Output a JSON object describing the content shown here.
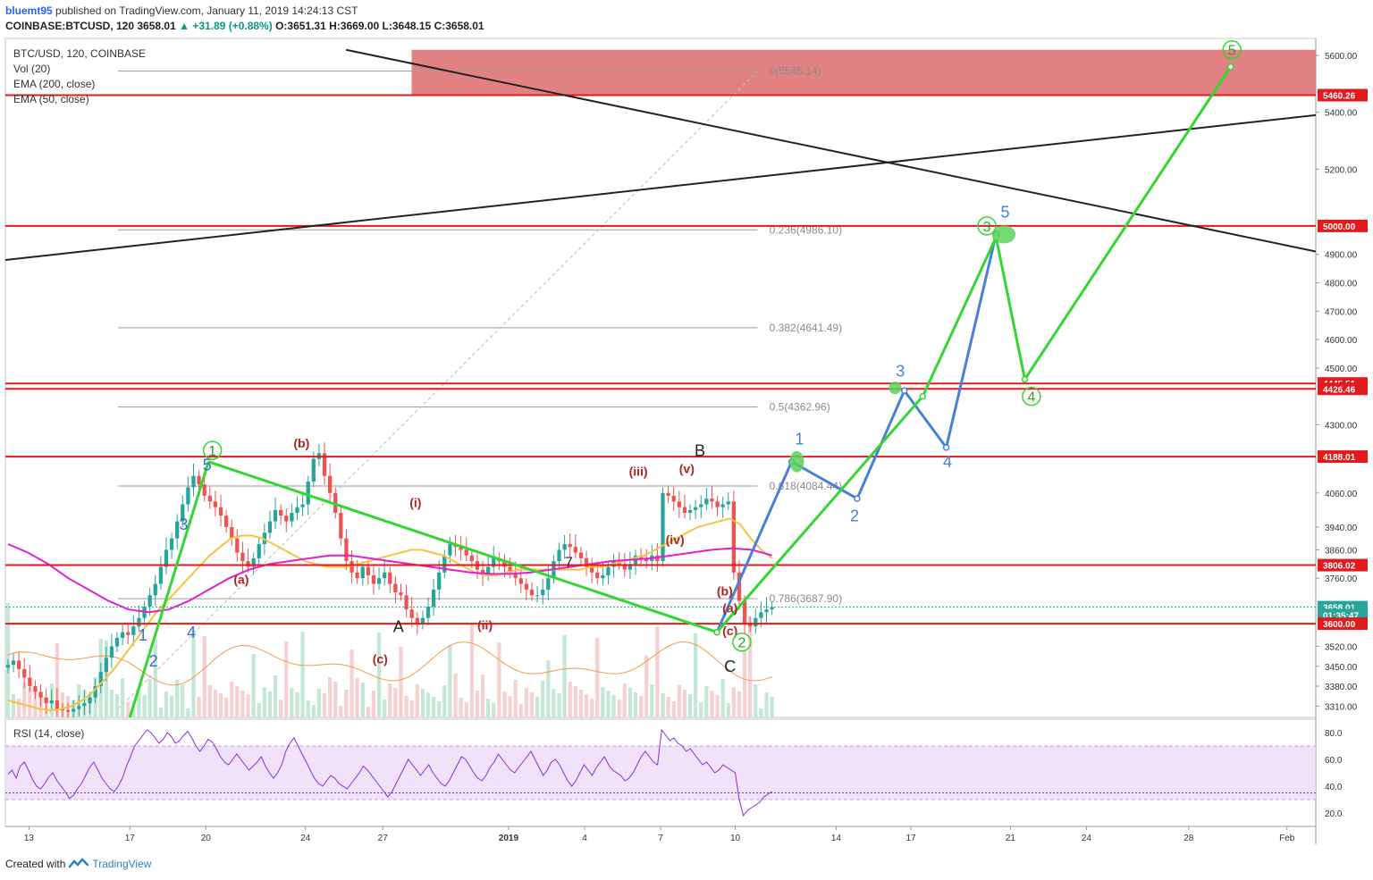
{
  "header": {
    "user": "bluemt95",
    "published_text": "published on TradingView.com, January 11, 2019 14:24:13 CST",
    "symbol": "COINBASE:BTCUSD, 120",
    "last": "3658.01",
    "change": "▲ +31.89 (+0.88%)",
    "open": "O:3651.31",
    "high": "H:3669.00",
    "low": "L:3648.15",
    "close": "C:3658.01"
  },
  "legend": {
    "title": "BTC/USD, 120, COINBASE",
    "items": [
      "Vol (20)",
      "EMA (200, close)",
      "EMA (50, close)"
    ]
  },
  "rsi": {
    "label": "RSI (14, close)",
    "ticks": [
      "80.0",
      "60.0",
      "40.0",
      "20.0"
    ],
    "values": [
      49,
      52,
      46,
      55,
      58,
      52,
      45,
      40,
      38,
      42,
      47,
      50,
      44,
      40,
      36,
      31,
      33,
      38,
      42,
      48,
      54,
      58,
      52,
      46,
      42,
      38,
      36,
      40,
      46,
      55,
      62,
      70,
      74,
      78,
      82,
      80,
      76,
      72,
      75,
      80,
      77,
      72,
      74,
      78,
      81,
      76,
      70,
      66,
      70,
      75,
      73,
      68,
      62,
      58,
      56,
      60,
      64,
      60,
      56,
      52,
      55,
      58,
      62,
      55,
      50,
      46,
      50,
      56,
      66,
      72,
      76,
      70,
      64,
      58,
      52,
      46,
      42,
      40,
      44,
      48,
      46,
      42,
      40,
      38,
      42,
      46,
      50,
      55,
      52,
      48,
      44,
      40,
      36,
      32,
      36,
      42,
      48,
      54,
      60,
      56,
      52,
      48,
      52,
      56,
      50,
      46,
      42,
      40,
      44,
      50,
      56,
      62,
      60,
      55,
      50,
      46,
      44,
      48,
      54,
      58,
      64,
      60,
      56,
      52,
      50,
      54,
      58,
      62,
      66,
      60,
      54,
      48,
      52,
      58,
      60,
      56,
      50,
      44,
      40,
      44,
      50,
      56,
      52,
      48,
      54,
      58,
      62,
      56,
      52,
      50,
      48,
      44,
      46,
      50,
      56,
      62,
      66,
      62,
      58,
      56,
      82,
      78,
      74,
      76,
      72,
      70,
      66,
      68,
      64,
      60,
      56,
      58,
      54,
      50,
      52,
      56,
      54,
      52,
      50,
      30,
      18,
      22,
      24,
      26,
      28,
      32,
      34,
      36
    ]
  },
  "footer": {
    "created_with": "Created with",
    "brand": "TradingView"
  },
  "chart_data": {
    "type": "candlestick",
    "symbol": "BTC/USD",
    "exchange": "COINBASE",
    "interval": "120",
    "ylim": [
      3270,
      5660
    ],
    "price_ticks": [
      5600,
      5400,
      5200,
      4900,
      4800,
      4700,
      4600,
      4500,
      4300,
      4060,
      3940,
      3860,
      3760,
      3520,
      3450,
      3380,
      3310
    ],
    "x_ticks": [
      "13",
      "17",
      "20",
      "24",
      "27",
      "2019",
      "4",
      "7",
      "10",
      "14",
      "17",
      "21",
      "24",
      "28",
      "Feb"
    ],
    "price_labels": [
      {
        "label": "5460.26",
        "value": 5460.26,
        "color": "#e31a1c"
      },
      {
        "label": "5000.00",
        "value": 5000.0,
        "color": "#e31a1c"
      },
      {
        "label": "4445.51",
        "value": 4445.51,
        "color": "#e31a1c"
      },
      {
        "label": "4426.46",
        "value": 4426.46,
        "color": "#e31a1c"
      },
      {
        "label": "4188.01",
        "value": 4188.01,
        "color": "#e31a1c"
      },
      {
        "label": "3806.02",
        "value": 3806.02,
        "color": "#e31a1c"
      },
      {
        "label": "3658.01",
        "value": 3658.01,
        "color": "#26a69a"
      },
      {
        "label": "01:35:47",
        "value": 3630,
        "color": "#26a69a"
      },
      {
        "label": "3600.00",
        "value": 3600.0,
        "color": "#e31a1c"
      }
    ],
    "fibonacci": [
      {
        "label": "0(5545.14)",
        "value": 5545.14
      },
      {
        "label": "0.236(4986.10)",
        "value": 4986.1
      },
      {
        "label": "0.382(4641.49)",
        "value": 4641.49
      },
      {
        "label": "0.5(4362.96)",
        "value": 4362.96
      },
      {
        "label": "0.618(4084.44)",
        "value": 4084.44
      },
      {
        "label": "0.786(3687.90)",
        "value": 3687.9
      }
    ],
    "close_series": [
      3455,
      3470,
      3440,
      3410,
      3380,
      3360,
      3340,
      3320,
      3330,
      3300,
      3295,
      3290,
      3300,
      3310,
      3320,
      3340,
      3380,
      3430,
      3480,
      3520,
      3550,
      3570,
      3560,
      3590,
      3620,
      3660,
      3700,
      3740,
      3800,
      3860,
      3900,
      3960,
      4020,
      4080,
      4120,
      4090,
      4050,
      4030,
      4010,
      3980,
      3940,
      3900,
      3850,
      3820,
      3800,
      3830,
      3880,
      3920,
      3960,
      4000,
      3980,
      3960,
      3990,
      4010,
      4020,
      4100,
      4180,
      4200,
      4120,
      4060,
      3990,
      3900,
      3820,
      3780,
      3760,
      3800,
      3770,
      3740,
      3760,
      3780,
      3740,
      3710,
      3700,
      3650,
      3620,
      3600,
      3620,
      3660,
      3720,
      3780,
      3840,
      3880,
      3870,
      3860,
      3840,
      3820,
      3790,
      3770,
      3800,
      3830,
      3820,
      3800,
      3780,
      3760,
      3740,
      3720,
      3700,
      3700,
      3720,
      3760,
      3820,
      3860,
      3880,
      3870,
      3850,
      3830,
      3800,
      3780,
      3760,
      3770,
      3800,
      3820,
      3810,
      3790,
      3810,
      3840,
      3830,
      3820,
      3840,
      3820,
      4060,
      4050,
      4030,
      4010,
      3990,
      4000,
      4010,
      4020,
      4040,
      4030,
      4010,
      4020,
      4030,
      3780,
      3680,
      3600,
      3590,
      3620,
      3640,
      3650,
      3658
    ],
    "ema50": [
      3330,
      3320,
      3310,
      3300,
      3295,
      3300,
      3310,
      3330,
      3360,
      3400,
      3440,
      3490,
      3540,
      3590,
      3640,
      3680,
      3720,
      3760,
      3800,
      3840,
      3870,
      3900,
      3910,
      3910,
      3900,
      3880,
      3860,
      3840,
      3820,
      3810,
      3800,
      3800,
      3800,
      3810,
      3820,
      3830,
      3840,
      3850,
      3860,
      3860,
      3850,
      3840,
      3820,
      3800,
      3780,
      3770,
      3770,
      3780,
      3790,
      3790,
      3790,
      3790,
      3790,
      3790,
      3790,
      3800,
      3800,
      3810,
      3820,
      3830,
      3840,
      3860,
      3880,
      3900,
      3920,
      3940,
      3950,
      3960,
      3970,
      3950,
      3900,
      3860,
      3830
    ],
    "ema200": [
      3880,
      3850,
      3810,
      3760,
      3720,
      3680,
      3650,
      3640,
      3650,
      3680,
      3720,
      3760,
      3790,
      3810,
      3820,
      3830,
      3840,
      3840,
      3830,
      3820,
      3810,
      3800,
      3790,
      3780,
      3775,
      3775,
      3780,
      3790,
      3800,
      3810,
      3820,
      3825,
      3830,
      3840,
      3850,
      3860,
      3865,
      3860,
      3840
    ],
    "trendlines": {
      "black_desc": {
        "from": [
          0.26,
          5620
        ],
        "to": [
          1.0,
          4910
        ]
      },
      "black_asc": {
        "from": [
          0.0,
          4880
        ],
        "to": [
          1.0,
          5390
        ]
      },
      "green_wedge_top": {
        "from": [
          0.155,
          4170
        ],
        "to": [
          0.543,
          3570
        ]
      },
      "green_projection": [
        [
          0.543,
          3570
        ],
        [
          0.7,
          4400
        ],
        [
          0.756,
          4960
        ],
        [
          0.778,
          4460
        ],
        [
          0.935,
          5560
        ]
      ],
      "blue_projection": [
        [
          0.543,
          3570
        ],
        [
          0.6,
          4170
        ],
        [
          0.65,
          4040
        ],
        [
          0.686,
          4420
        ],
        [
          0.718,
          4220
        ],
        [
          0.756,
          4970
        ]
      ]
    },
    "resistance_zone": {
      "from": 5460.26,
      "to": 5620
    },
    "wave_labels": [
      {
        "text": "1",
        "color": "#3a6fcf"
      },
      {
        "text": "2",
        "color": "#3a6fcf"
      },
      {
        "text": "3",
        "color": "#3a6fcf"
      },
      {
        "text": "4",
        "color": "#3a6fcf"
      },
      {
        "text": "5",
        "color": "#3a6fcf"
      },
      {
        "text": "(a)",
        "color": "#b22222"
      },
      {
        "text": "(b)",
        "color": "#b22222"
      },
      {
        "text": "(c)",
        "color": "#b22222"
      },
      {
        "text": "(i)",
        "color": "#b22222"
      },
      {
        "text": "(ii)",
        "color": "#b22222"
      },
      {
        "text": "(iii)",
        "color": "#b22222"
      },
      {
        "text": "(iv)",
        "color": "#b22222"
      },
      {
        "text": "(v)",
        "color": "#b22222"
      },
      {
        "text": "A",
        "color": "#222222"
      },
      {
        "text": "B",
        "color": "#222222"
      },
      {
        "text": "C",
        "color": "#222222"
      },
      {
        "text": "7",
        "color": "#222222"
      }
    ],
    "circled_labels": [
      "1",
      "2",
      "3",
      "4",
      "5"
    ],
    "colors": {
      "up_candle": "#26a69a",
      "down_candle": "#ef5350",
      "ema50": "#f5c342",
      "ema200": "#e020d0",
      "support": "#e31a1c",
      "green_line": "#33d633",
      "blue_line": "#4a7fd6",
      "zone": "#e07a7a"
    }
  }
}
